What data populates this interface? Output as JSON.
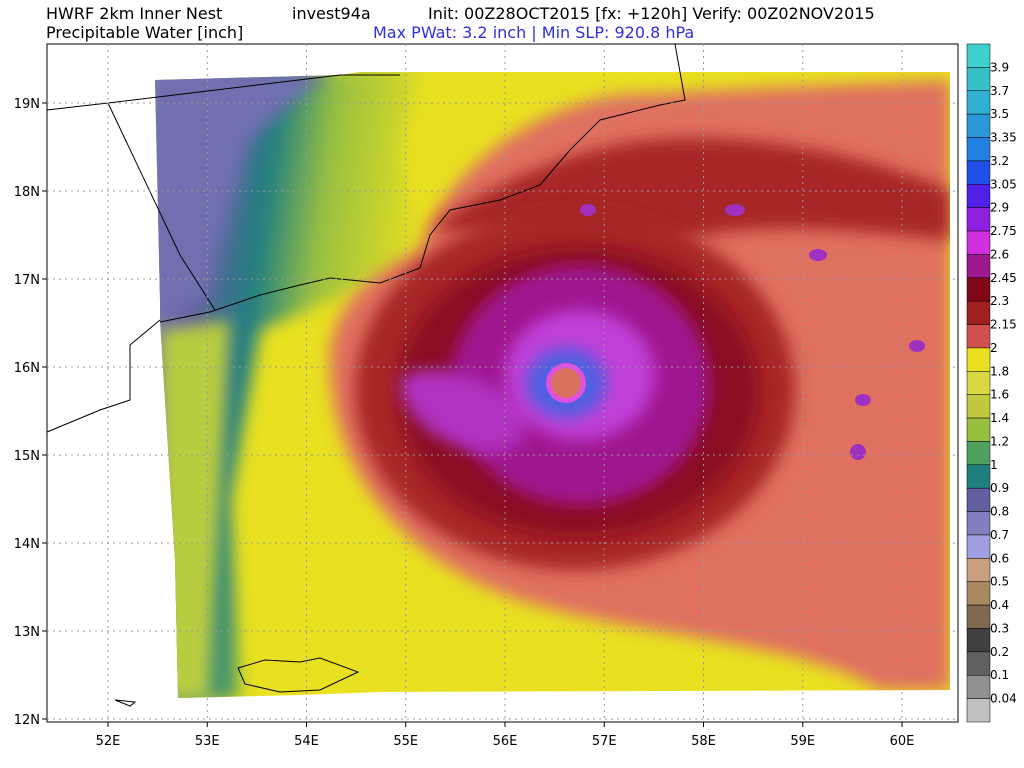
{
  "header": {
    "model": "HWRF 2km Inner Nest",
    "storm": "invest94a",
    "init": "Init: 00Z28OCT2015 [fx: +120h] Verify: 00Z02NOV2015",
    "field": "Precipitable Water [inch]",
    "stats": "Max PWat:  3.2 inch | Min SLP: 920.8 hPa"
  },
  "axes": {
    "lon_labels": [
      "52E",
      "53E",
      "54E",
      "55E",
      "56E",
      "57E",
      "58E",
      "59E",
      "60E"
    ],
    "lat_labels": [
      "19N",
      "18N",
      "17N",
      "16N",
      "15N",
      "14N",
      "13N",
      "12N"
    ]
  },
  "colorbar": {
    "colors": [
      "#40d0d0",
      "#38c0c8",
      "#30b0d0",
      "#2898d8",
      "#2080e0",
      "#2050e8",
      "#5020e8",
      "#9020e0",
      "#d030e0",
      "#a01890",
      "#800818",
      "#a02020",
      "#d05050",
      "#e8e020",
      "#d8d840",
      "#c0c840",
      "#98c040",
      "#50a060",
      "#208080",
      "#6060a0",
      "#8080c0",
      "#a0a0e0",
      "#c8a080",
      "#a88860",
      "#806850",
      "#404040",
      "#606060",
      "#909090",
      "#c0c0c0"
    ],
    "labels": [
      "3.9",
      "3.7",
      "3.5",
      "3.35",
      "3.2",
      "3.05",
      "2.9",
      "2.75",
      "2.6",
      "2.45",
      "2.3",
      "2.15",
      "2",
      "1.8",
      "1.6",
      "1.4",
      "1.2",
      "1",
      "0.9",
      "0.8",
      "0.7",
      "0.6",
      "0.5",
      "0.4",
      "0.3",
      "0.2",
      "0.1",
      "0.04"
    ]
  }
}
